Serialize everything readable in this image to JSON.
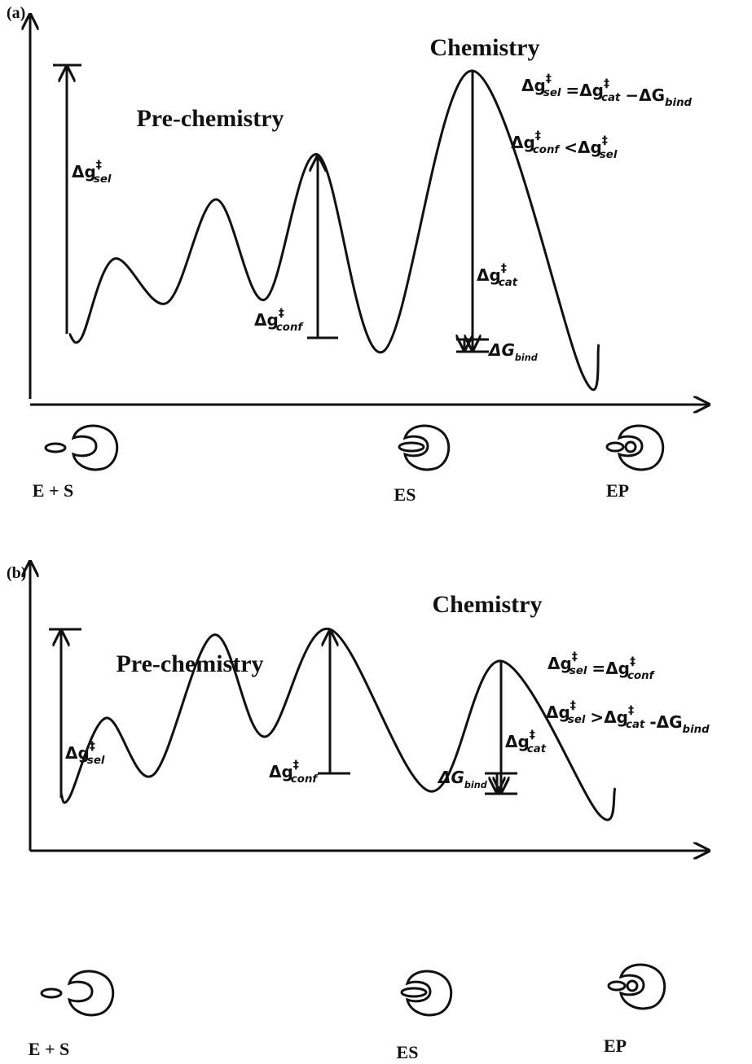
{
  "panels": [
    {
      "label": "(a)",
      "pre_title": "Pre-chemistry",
      "chem_title": "Chemistry",
      "equations": [
        [
          {
            "base": "Δg",
            "sup": "‡",
            "sub": "sel"
          },
          "=",
          {
            "base": "Δg",
            "sup": "‡",
            "sub": "cat"
          },
          "−",
          {
            "base": "ΔG",
            "sub": "bind"
          }
        ],
        [
          {
            "base": "Δg",
            "sup": "‡",
            "sub": "conf"
          },
          "<",
          {
            "base": "Δg",
            "sup": "‡",
            "sub": "sel"
          }
        ]
      ],
      "annotations": {
        "sel": {
          "base": "Δg",
          "sup": "‡",
          "sub": "sel"
        },
        "conf": {
          "base": "Δg",
          "sup": "‡",
          "sub": "conf"
        },
        "cat": {
          "base": "Δg",
          "sup": "‡",
          "sub": "cat"
        },
        "bind": {
          "base": "ΔG",
          "sub": "bind"
        }
      },
      "states": [
        "E + S",
        "ES",
        "EP"
      ]
    },
    {
      "label": "(b)",
      "pre_title": "Pre-chemistry",
      "chem_title": "Chemistry",
      "equations": [
        [
          {
            "base": "Δg",
            "sup": "‡",
            "sub": "sel"
          },
          "=",
          {
            "base": "Δg",
            "sup": "‡",
            "sub": "conf"
          }
        ],
        [
          {
            "base": "Δg",
            "sup": "‡",
            "sub": "sel"
          },
          ">",
          {
            "base": "Δg",
            "sup": "‡",
            "sub": "cat"
          },
          "-",
          {
            "base": "ΔG",
            "sub": "bind"
          }
        ]
      ],
      "annotations": {
        "sel": {
          "base": "Δg",
          "sup": "‡",
          "sub": "sel"
        },
        "conf": {
          "base": "Δg",
          "sup": "‡",
          "sub": "conf"
        },
        "cat": {
          "base": "Δg",
          "sup": "‡",
          "sub": "cat"
        },
        "bind": {
          "base": "ΔG",
          "sub": "bind"
        }
      },
      "states": [
        "E + S",
        "ES",
        "EP"
      ]
    }
  ]
}
